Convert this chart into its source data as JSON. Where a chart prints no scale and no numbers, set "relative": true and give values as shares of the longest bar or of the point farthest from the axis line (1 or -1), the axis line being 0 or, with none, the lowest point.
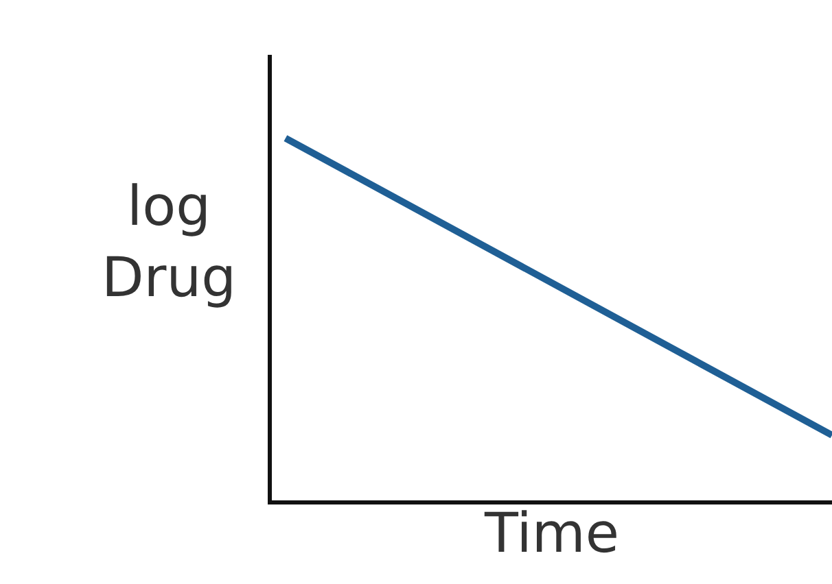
{
  "chart_data": {
    "type": "line",
    "relative": true,
    "xlabel": "Time",
    "ylabel": "log Drug",
    "categories": [
      null,
      null
    ],
    "series": [
      {
        "color": "#1f5f95",
        "values": [
          1,
          0.18
        ]
      }
    ],
    "grid": false,
    "marker": "none",
    "line_style": "solid"
  }
}
